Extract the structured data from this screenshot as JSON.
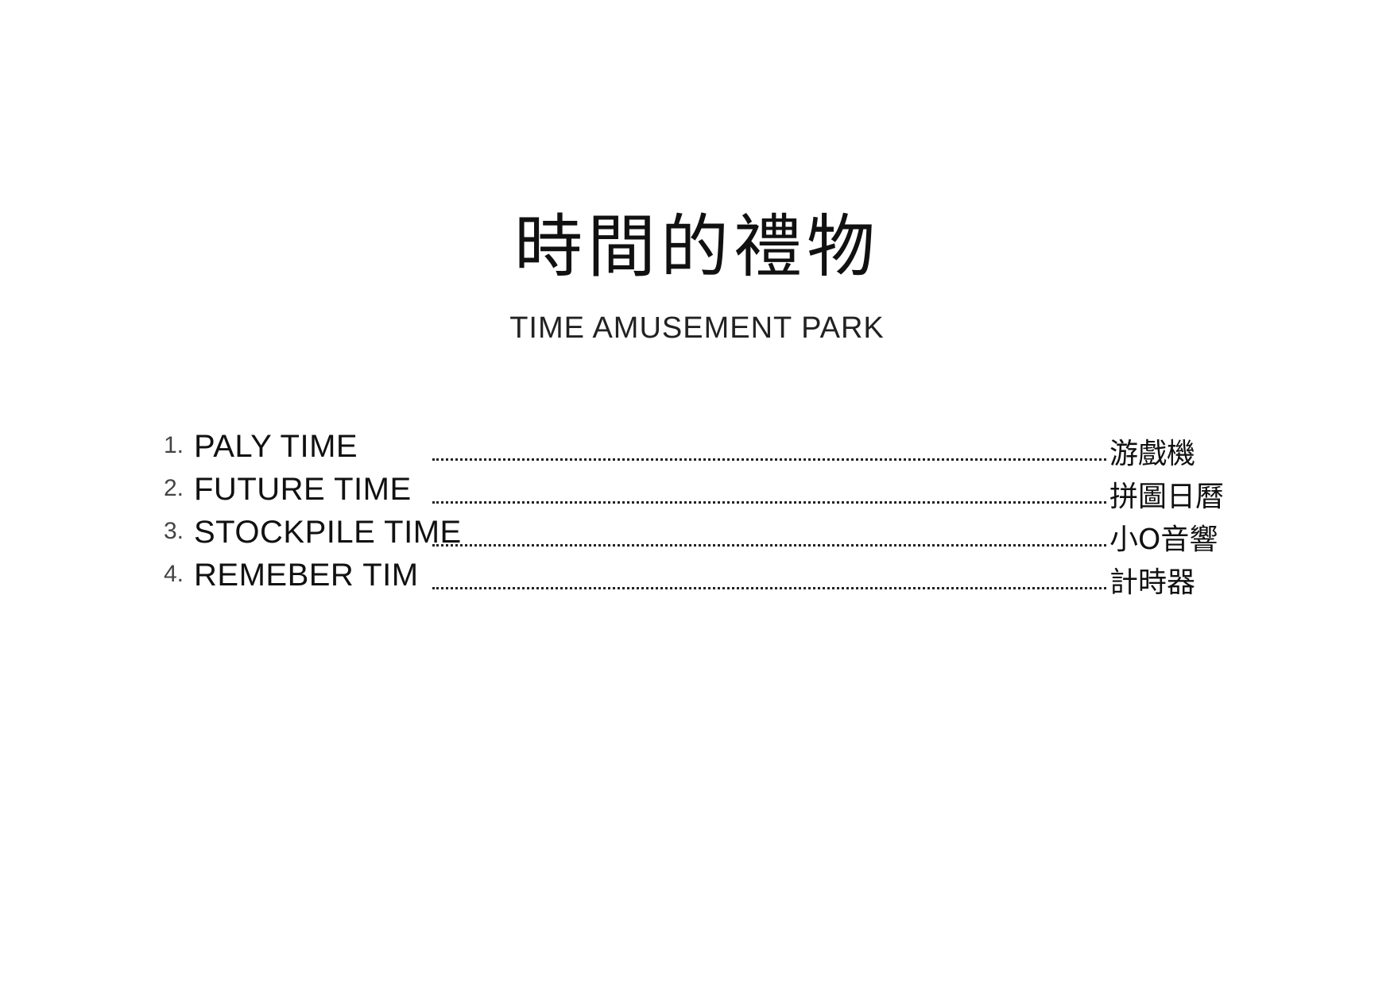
{
  "title_zh": "時間的禮物",
  "title_en": "TIME AMUSEMENT PARK",
  "toc": [
    {
      "num": "1.",
      "label": "PALY TIME",
      "value": "游戲機"
    },
    {
      "num": "2.",
      "label": "FUTURE TIME",
      "value": "拼圖日曆"
    },
    {
      "num": "3.",
      "label": "STOCKPILE TIME",
      "value": "小O音響"
    },
    {
      "num": "4.",
      "label": "REMEBER TIM",
      "value": "計時器"
    }
  ]
}
